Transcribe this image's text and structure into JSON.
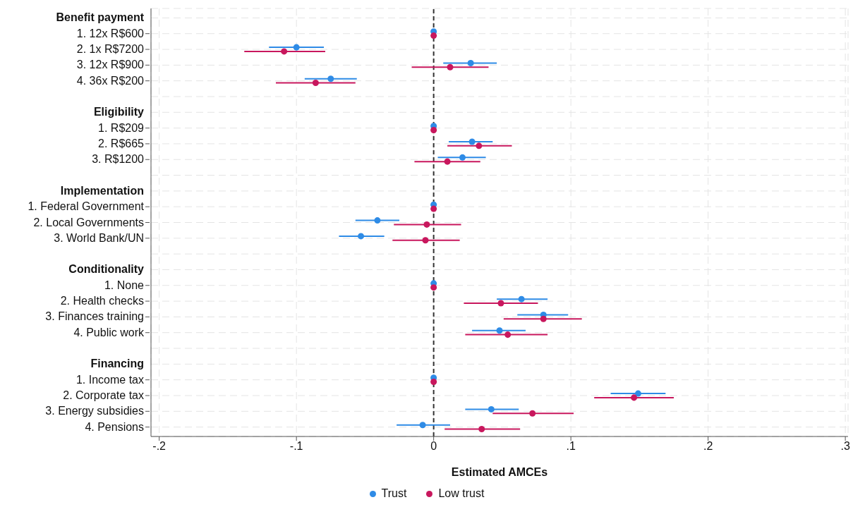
{
  "chart_data": {
    "type": "scatter",
    "xlabel": "Estimated AMCEs",
    "categories": [
      "Benefit payment",
      "1. 12x R$600",
      "2. 1x R$7200",
      "3. 12x R$900",
      "4. 36x R$200",
      null,
      "Eligibility",
      "1. R$209",
      "2. R$665",
      "3. R$1200",
      null,
      "Implementation",
      "1. Federal Government",
      "2. Local Governments",
      "3. World Bank/UN",
      null,
      "Conditionality",
      "1. None",
      "2. Health checks",
      "3. Finances training",
      "4. Public work",
      null,
      "Financing",
      "1. Income tax",
      "2. Corporate tax",
      "3. Energy subsidies",
      "4. Pensions"
    ],
    "series": [
      {
        "name": "Trust",
        "color": "#2e8be6",
        "values": [
          null,
          0,
          -0.1,
          0.027,
          -0.075,
          null,
          null,
          0,
          0.028,
          0.021,
          null,
          null,
          0,
          -0.041,
          -0.053,
          null,
          null,
          0,
          0.064,
          0.08,
          0.048,
          null,
          null,
          0,
          0.149,
          0.042,
          -0.008
        ],
        "errors": [
          null,
          null,
          [
            -0.12,
            -0.08
          ],
          [
            0.007,
            0.046
          ],
          [
            -0.094,
            -0.056
          ],
          null,
          null,
          null,
          [
            0.011,
            0.043
          ],
          [
            0.003,
            0.038
          ],
          null,
          null,
          null,
          [
            -0.057,
            -0.025
          ],
          [
            -0.069,
            -0.036
          ],
          null,
          null,
          null,
          [
            0.046,
            0.083
          ],
          [
            0.061,
            0.098
          ],
          [
            0.028,
            0.067
          ],
          null,
          null,
          null,
          [
            0.129,
            0.169
          ],
          [
            0.023,
            0.062
          ],
          [
            -0.027,
            0.012
          ]
        ]
      },
      {
        "name": "Low trust",
        "color": "#c8175d",
        "values": [
          null,
          0,
          -0.109,
          0.012,
          -0.086,
          null,
          null,
          0,
          0.033,
          0.01,
          null,
          null,
          0,
          -0.005,
          -0.006,
          null,
          null,
          0,
          0.049,
          0.08,
          0.054,
          null,
          null,
          0,
          0.146,
          0.072,
          0.035
        ],
        "errors": [
          null,
          null,
          [
            -0.138,
            -0.079
          ],
          [
            -0.016,
            0.04
          ],
          [
            -0.115,
            -0.057
          ],
          null,
          null,
          null,
          [
            0.01,
            0.057
          ],
          [
            -0.014,
            0.034
          ],
          null,
          null,
          null,
          [
            -0.029,
            0.02
          ],
          [
            -0.03,
            0.019
          ],
          null,
          null,
          null,
          [
            0.022,
            0.076
          ],
          [
            0.051,
            0.108
          ],
          [
            0.023,
            0.083
          ],
          null,
          null,
          null,
          [
            0.117,
            0.175
          ],
          [
            0.043,
            0.102
          ],
          [
            0.008,
            0.063
          ]
        ]
      }
    ],
    "xlim": [
      -0.206,
      0.302
    ],
    "xticks": [
      {
        "value": -0.2,
        "label": "-.2"
      },
      {
        "value": -0.1,
        "label": "-.1"
      },
      0,
      {
        "value": 0.1,
        "label": ".1"
      },
      {
        "value": 0.2,
        "label": ".2"
      },
      {
        "value": 0.3,
        "label": ".3"
      }
    ],
    "ref_lines": [
      {
        "axis": "x",
        "value": 0,
        "color": "#333333",
        "line_style": "dashed"
      }
    ],
    "grid": true,
    "legend": "bottom",
    "marker": "circle",
    "orientation": "horizontal"
  }
}
